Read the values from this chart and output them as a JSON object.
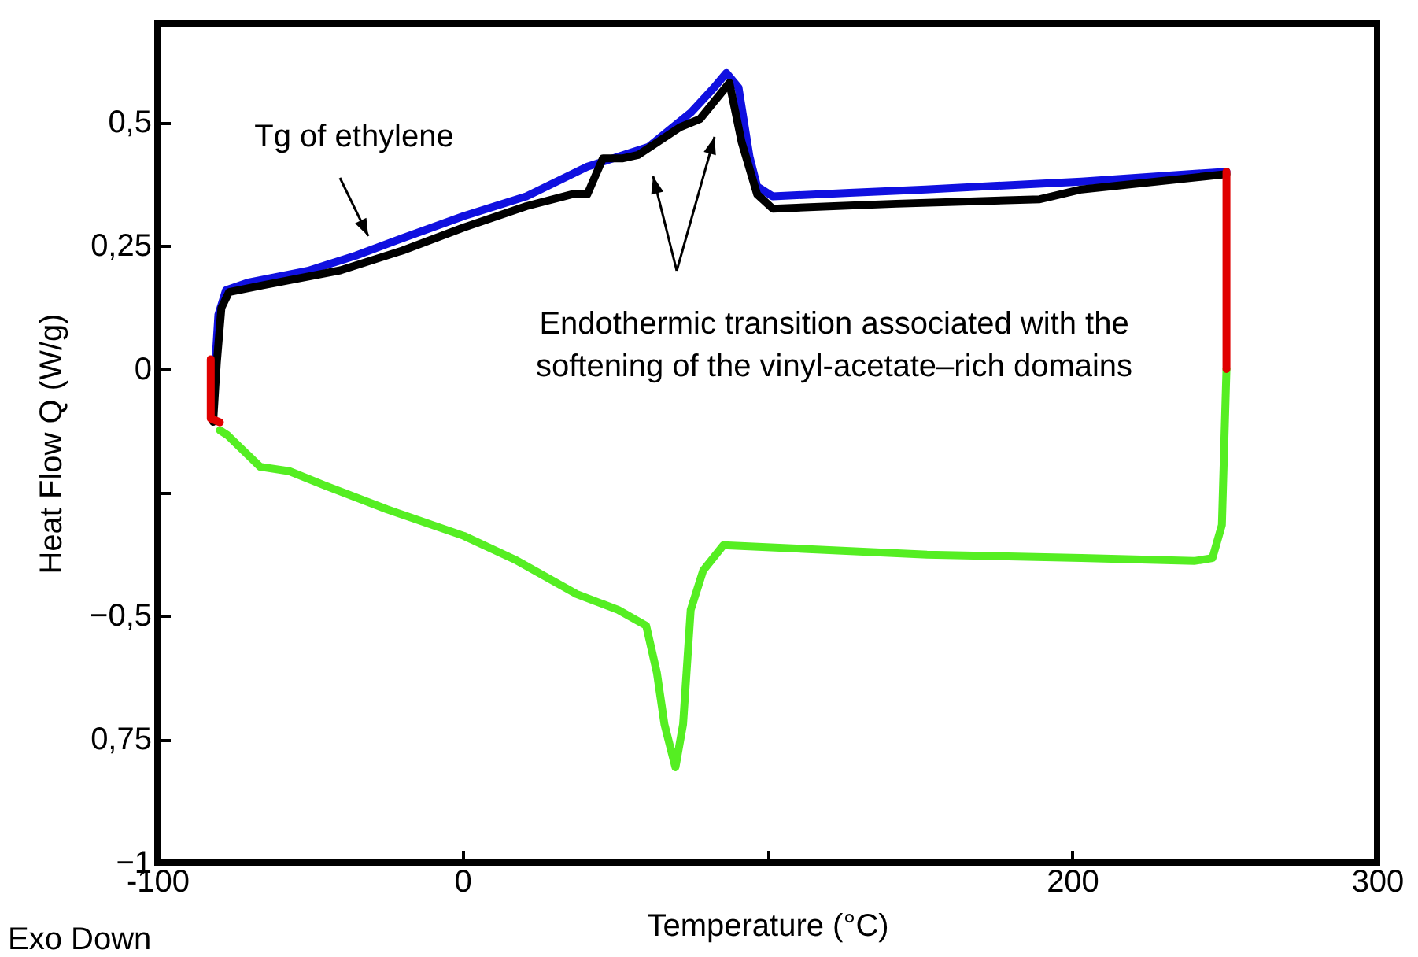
{
  "chart_data": {
    "type": "line",
    "xlabel": "Temperature (°C)",
    "ylabel": "Heat Flow Q (W/g)",
    "xlim": [
      -100,
      300
    ],
    "ylim": [
      -1,
      0.7
    ],
    "xticks": [
      -100,
      0,
      {
        "value": 100,
        "label": null
      },
      200,
      300
    ],
    "yticks": [
      {
        "value": 0.5,
        "label": "0,5"
      },
      {
        "value": 0.25,
        "label": "0,25"
      },
      0,
      {
        "value": -0.25,
        "label": null
      },
      {
        "value": -0.5,
        "label": "−0,5"
      },
      {
        "value": -0.75,
        "label": "0,75"
      },
      {
        "value": -1,
        "label": "−1"
      }
    ],
    "grid": false,
    "marker": "none",
    "line_style": "solid",
    "series": [
      {
        "color": "#1010e0",
        "x": [
          -81,
          -80,
          -77.5,
          -70.4,
          -50.1,
          -34.9,
          -19.7,
          0.5,
          21,
          41,
          61,
          75,
          82.5,
          86.6,
          90.6,
          94.2,
          96.7,
          101.8,
          127,
          152,
          203,
          250.6
        ],
        "values": [
          0.01,
          0.11,
          0.16,
          0.175,
          0.2,
          0.23,
          0.265,
          0.31,
          0.35,
          0.41,
          0.45,
          0.52,
          0.57,
          0.6,
          0.57,
          0.43,
          0.37,
          0.35,
          0.357,
          0.364,
          0.38,
          0.4
        ]
      },
      {
        "color": "#000000",
        "x": [
          -81.7,
          -80.5,
          -79,
          -76.5,
          -65.3,
          -40,
          -19.7,
          0.5,
          21,
          36,
          41,
          46.1,
          52.7,
          57.7,
          71.4,
          78,
          87.6,
          91.6,
          96.7,
          101.8,
          142.3,
          189.4,
          203,
          250.6
        ],
        "values": [
          -0.107,
          0.013,
          0.124,
          0.156,
          0.17,
          0.2,
          0.24,
          0.287,
          0.33,
          0.354,
          0.354,
          0.427,
          0.427,
          0.434,
          0.49,
          0.507,
          0.58,
          0.46,
          0.354,
          0.325,
          0.335,
          0.344,
          0.364,
          0.395
        ]
      },
      {
        "color": "#55ee22",
        "x": [
          -79.5,
          -77,
          -66.3,
          -56.7,
          -45.1,
          -24.8,
          0.5,
          17.2,
          37.5,
          51.1,
          60.3,
          63.8,
          66.3,
          69.9,
          72.4,
          74.9,
          79,
          85.6,
          152.4,
          203,
          240,
          246,
          249.1,
          250.6
        ],
        "values": [
          -0.124,
          -0.134,
          -0.198,
          -0.207,
          -0.236,
          -0.284,
          -0.338,
          -0.386,
          -0.456,
          -0.488,
          -0.52,
          -0.615,
          -0.72,
          -0.807,
          -0.72,
          -0.488,
          -0.408,
          -0.357,
          -0.376,
          -0.383,
          -0.389,
          -0.383,
          -0.316,
          0
        ]
      },
      {
        "color": "#e00000",
        "x": [
          -82.5,
          -82.5,
          -79.5
        ],
        "values": [
          0.02,
          -0.1,
          -0.108
        ]
      },
      {
        "color": "#e00000",
        "x": [
          250.6,
          250.6
        ],
        "values": [
          0.4,
          0
        ]
      }
    ],
    "annotations": [
      "Tg of ethylene",
      "Endothermic transition associated with the softening of the vinyl-acetate–rich domains",
      "Exo Down"
    ]
  }
}
